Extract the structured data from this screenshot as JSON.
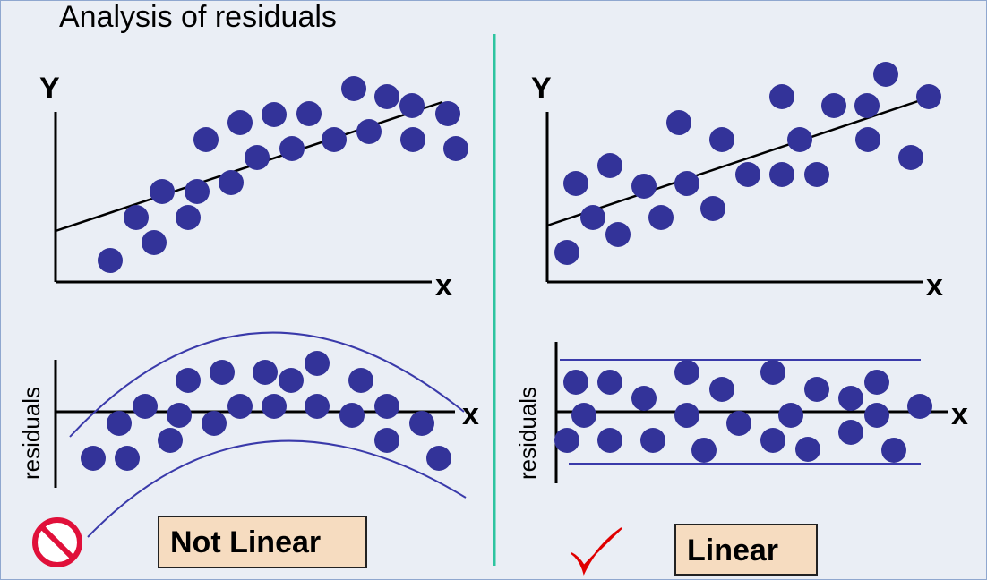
{
  "title": "Analysis of residuals",
  "left_panel": {
    "y_axis_label": "Y",
    "x_axis_label": "x",
    "residual_axis_label": "residuals",
    "residual_x_label": "x",
    "verdict": "Not Linear",
    "verdict_icon": "prohibited-icon",
    "points": [
      [
        123,
        291
      ],
      [
        152,
        243
      ],
      [
        172,
        271
      ],
      [
        181,
        214
      ],
      [
        210,
        243
      ],
      [
        220,
        214
      ],
      [
        230,
        156
      ],
      [
        258,
        204
      ],
      [
        268,
        137
      ],
      [
        287,
        176
      ],
      [
        306,
        128
      ],
      [
        326,
        166
      ],
      [
        345,
        127
      ],
      [
        373,
        156
      ],
      [
        395,
        99
      ],
      [
        412,
        147
      ],
      [
        432,
        108
      ],
      [
        460,
        118
      ],
      [
        461,
        156
      ],
      [
        500,
        127
      ],
      [
        509,
        166
      ]
    ],
    "residual_points": [
      [
        104,
        512
      ],
      [
        133,
        473
      ],
      [
        142,
        512
      ],
      [
        162,
        454
      ],
      [
        190,
        492
      ],
      [
        200,
        464
      ],
      [
        210,
        425
      ],
      [
        239,
        473
      ],
      [
        248,
        416
      ],
      [
        268,
        454
      ],
      [
        296,
        416
      ],
      [
        306,
        454
      ],
      [
        325,
        425
      ],
      [
        354,
        406
      ],
      [
        354,
        454
      ],
      [
        393,
        464
      ],
      [
        403,
        425
      ],
      [
        432,
        454
      ],
      [
        432,
        492
      ],
      [
        471,
        473
      ],
      [
        490,
        512
      ]
    ]
  },
  "right_panel": {
    "y_axis_label": "Y",
    "x_axis_label": "x",
    "residual_axis_label": "residuals",
    "residual_x_label": "x",
    "verdict": "Linear",
    "verdict_icon": "checkmark-icon",
    "points": [
      [
        633,
        282
      ],
      [
        643,
        205
      ],
      [
        662,
        243
      ],
      [
        681,
        185
      ],
      [
        690,
        262
      ],
      [
        719,
        208
      ],
      [
        738,
        243
      ],
      [
        758,
        137
      ],
      [
        767,
        205
      ],
      [
        796,
        233
      ],
      [
        806,
        156
      ],
      [
        835,
        195
      ],
      [
        873,
        108
      ],
      [
        873,
        195
      ],
      [
        893,
        156
      ],
      [
        912,
        195
      ],
      [
        931,
        118
      ],
      [
        968,
        118
      ],
      [
        969,
        156
      ],
      [
        989,
        83
      ],
      [
        1017,
        176
      ],
      [
        1037,
        108
      ]
    ],
    "residual_points": [
      [
        633,
        492
      ],
      [
        643,
        427
      ],
      [
        652,
        464
      ],
      [
        681,
        427
      ],
      [
        681,
        492
      ],
      [
        719,
        445
      ],
      [
        729,
        492
      ],
      [
        767,
        416
      ],
      [
        767,
        464
      ],
      [
        786,
        503
      ],
      [
        806,
        435
      ],
      [
        825,
        473
      ],
      [
        863,
        416
      ],
      [
        863,
        492
      ],
      [
        883,
        464
      ],
      [
        902,
        502
      ],
      [
        912,
        435
      ],
      [
        950,
        445
      ],
      [
        950,
        483
      ],
      [
        979,
        427
      ],
      [
        979,
        464
      ],
      [
        998,
        503
      ],
      [
        1027,
        454
      ]
    ]
  },
  "colors": {
    "dot": "#333399",
    "band": "#3a3aaa",
    "divider": "#2ec4a0",
    "check": "#e00000",
    "prohibit": "#e0103a",
    "label_bg": "#f6dcc0"
  }
}
